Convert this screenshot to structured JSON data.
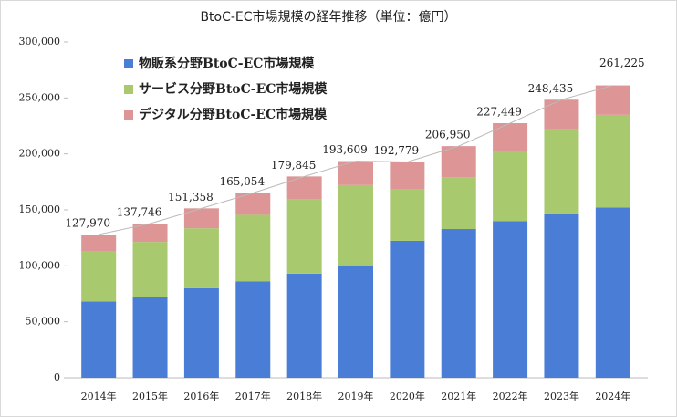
{
  "chart_data": {
    "type": "stacked-bar",
    "title": "BtoC-EC市場規模の経年推移（単位：億円）",
    "categories": [
      "2014年",
      "2015年",
      "2016年",
      "2017年",
      "2018年",
      "2019年",
      "2020年",
      "2021年",
      "2022年",
      "2023年",
      "2024年"
    ],
    "series": [
      {
        "name": "物販系分野BtoC-EC市場規模",
        "color": "#4a7ed6",
        "values": [
          68043,
          72398,
          80043,
          86008,
          92992,
          100515,
          122333,
          132865,
          139997,
          146760,
          152194
        ]
      },
      {
        "name": "サービス分野BtoC-EC市場規模",
        "color": "#a9c96f",
        "values": [
          44927,
          48984,
          53532,
          59568,
          66471,
          71672,
          45832,
          46424,
          61477,
          75169,
          82715
        ]
      },
      {
        "name": "デジタル分野BtoC-EC市場規模",
        "color": "#dd9596",
        "values": [
          15000,
          16364,
          17783,
          19478,
          20382,
          21422,
          24614,
          27661,
          25974,
          26506,
          26316
        ]
      }
    ],
    "totals": [
      127970,
      137746,
      151358,
      165054,
      179845,
      193609,
      192779,
      206950,
      227449,
      248435,
      261225
    ],
    "total_labels": [
      "127,970",
      "137,746",
      "151,358",
      "165,054",
      "179,845",
      "193,609",
      "192,779",
      "206,950",
      "227,449",
      "248,435",
      "261,225"
    ],
    "ylim": [
      0,
      300000
    ],
    "yticks": [
      0,
      {
        "value": 50000,
        "label": "50,000"
      },
      {
        "value": 100000,
        "label": "100,000"
      },
      {
        "value": 150000,
        "label": "150,000"
      },
      {
        "value": 200000,
        "label": "200,000"
      },
      {
        "value": 250000,
        "label": "250,000"
      },
      {
        "value": 300000,
        "label": "300,000"
      }
    ],
    "legend": "top-left"
  }
}
